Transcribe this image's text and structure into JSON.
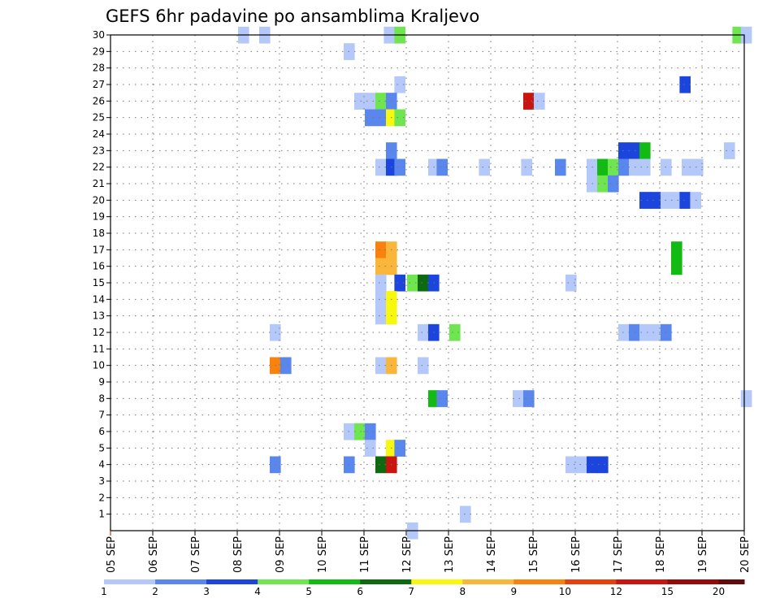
{
  "chart_data": {
    "type": "heatmap",
    "title": "GEFS 6hr padavine po ansamblima Kraljevo",
    "xlabel": "",
    "ylabel": "",
    "x_tick_labels": [
      "05 SEP",
      "06 SEP",
      "07 SEP",
      "08 SEP",
      "09 SEP",
      "10 SEP",
      "11 SEP",
      "12 SEP",
      "13 SEP",
      "14 SEP",
      "15 SEP",
      "16 SEP",
      "17 SEP",
      "18 SEP",
      "19 SEP",
      "20 SEP"
    ],
    "y_tick_labels": [
      "1",
      "2",
      "3",
      "4",
      "5",
      "6",
      "7",
      "8",
      "9",
      "10",
      "11",
      "12",
      "13",
      "14",
      "15",
      "16",
      "17",
      "18",
      "19",
      "20",
      "21",
      "22",
      "23",
      "24",
      "25",
      "26",
      "27",
      "28",
      "29",
      "30"
    ],
    "xlim_days": [
      5,
      20
    ],
    "ylim": [
      0,
      30
    ],
    "grid": true,
    "colorbar": {
      "position": "bottom",
      "labels": [
        "1",
        "2",
        "3",
        "4",
        "5",
        "6",
        "7",
        "8",
        "9",
        "10",
        "12",
        "15",
        "20"
      ],
      "colors": [
        "#b4c8fa",
        "#5a87ee",
        "#1b45dd",
        "#6fe650",
        "#12bb12",
        "#0e6a10",
        "#f8f80e",
        "#fab63a",
        "#f9820e",
        "#e6400f",
        "#c8150f",
        "#960b0a",
        "#640a0a"
      ]
    },
    "cells": [
      [
        8.15,
        30,
        1
      ],
      [
        8.65,
        30,
        1
      ],
      [
        11.6,
        30,
        1
      ],
      [
        11.85,
        30,
        4
      ],
      [
        19.85,
        30,
        4
      ],
      [
        20.05,
        30,
        1
      ],
      [
        10.65,
        29,
        1
      ],
      [
        11.85,
        27,
        1
      ],
      [
        18.6,
        27,
        3
      ],
      [
        10.9,
        26,
        1
      ],
      [
        11.15,
        26,
        1
      ],
      [
        11.4,
        26,
        4
      ],
      [
        11.65,
        26,
        2
      ],
      [
        14.9,
        26,
        11
      ],
      [
        15.15,
        26,
        1
      ],
      [
        11.15,
        25,
        2
      ],
      [
        11.4,
        25,
        2
      ],
      [
        11.65,
        25,
        7
      ],
      [
        11.85,
        25,
        4
      ],
      [
        11.65,
        23,
        2
      ],
      [
        17.15,
        23,
        3
      ],
      [
        17.4,
        23,
        3
      ],
      [
        17.65,
        23,
        5
      ],
      [
        19.65,
        23,
        1
      ],
      [
        11.4,
        22,
        1
      ],
      [
        11.65,
        22,
        3
      ],
      [
        11.85,
        22,
        2
      ],
      [
        12.65,
        22,
        1
      ],
      [
        12.85,
        22,
        2
      ],
      [
        13.85,
        22,
        1
      ],
      [
        14.85,
        22,
        1
      ],
      [
        15.65,
        22,
        2
      ],
      [
        16.4,
        22,
        1
      ],
      [
        16.65,
        22,
        5
      ],
      [
        16.9,
        22,
        4
      ],
      [
        17.15,
        22,
        2
      ],
      [
        17.4,
        22,
        1
      ],
      [
        17.65,
        22,
        1
      ],
      [
        18.15,
        22,
        1
      ],
      [
        18.65,
        22,
        1
      ],
      [
        18.9,
        22,
        1
      ],
      [
        16.4,
        21,
        1
      ],
      [
        16.65,
        21,
        4
      ],
      [
        16.9,
        21,
        2
      ],
      [
        17.65,
        20,
        3
      ],
      [
        17.9,
        20,
        3
      ],
      [
        18.15,
        20,
        1
      ],
      [
        18.4,
        20,
        1
      ],
      [
        18.6,
        20,
        3
      ],
      [
        18.85,
        20,
        1
      ],
      [
        11.4,
        17,
        9
      ],
      [
        11.65,
        17,
        8
      ],
      [
        18.4,
        17,
        5
      ],
      [
        11.4,
        16,
        8
      ],
      [
        11.65,
        16,
        8
      ],
      [
        18.4,
        16,
        5
      ],
      [
        11.4,
        15,
        1
      ],
      [
        11.85,
        15,
        3
      ],
      [
        12.15,
        15,
        4
      ],
      [
        12.4,
        15,
        6
      ],
      [
        12.65,
        15,
        3
      ],
      [
        15.9,
        15,
        1
      ],
      [
        11.4,
        14,
        1
      ],
      [
        11.65,
        14,
        7
      ],
      [
        11.4,
        13,
        1
      ],
      [
        11.65,
        13,
        7
      ],
      [
        8.9,
        12,
        1
      ],
      [
        12.4,
        12,
        1
      ],
      [
        12.65,
        12,
        3
      ],
      [
        13.15,
        12,
        4
      ],
      [
        17.15,
        12,
        1
      ],
      [
        17.4,
        12,
        2
      ],
      [
        17.65,
        12,
        1
      ],
      [
        17.9,
        12,
        1
      ],
      [
        18.15,
        12,
        2
      ],
      [
        8.9,
        10,
        9
      ],
      [
        9.15,
        10,
        2
      ],
      [
        11.4,
        10,
        1
      ],
      [
        11.65,
        10,
        8
      ],
      [
        12.4,
        10,
        1
      ],
      [
        12.65,
        8,
        5
      ],
      [
        12.85,
        8,
        2
      ],
      [
        14.65,
        8,
        1
      ],
      [
        14.9,
        8,
        2
      ],
      [
        20.05,
        8,
        1
      ],
      [
        10.65,
        6,
        1
      ],
      [
        10.9,
        6,
        4
      ],
      [
        11.15,
        6,
        2
      ],
      [
        11.15,
        5,
        1
      ],
      [
        11.65,
        5,
        7
      ],
      [
        11.85,
        5,
        2
      ],
      [
        8.9,
        4,
        2
      ],
      [
        10.65,
        4,
        2
      ],
      [
        11.4,
        4,
        6
      ],
      [
        11.65,
        4,
        11
      ],
      [
        15.9,
        4,
        1
      ],
      [
        16.15,
        4,
        1
      ],
      [
        16.4,
        4,
        3
      ],
      [
        16.65,
        4,
        3
      ],
      [
        13.4,
        1,
        1
      ],
      [
        12.15,
        0,
        1
      ]
    ]
  }
}
